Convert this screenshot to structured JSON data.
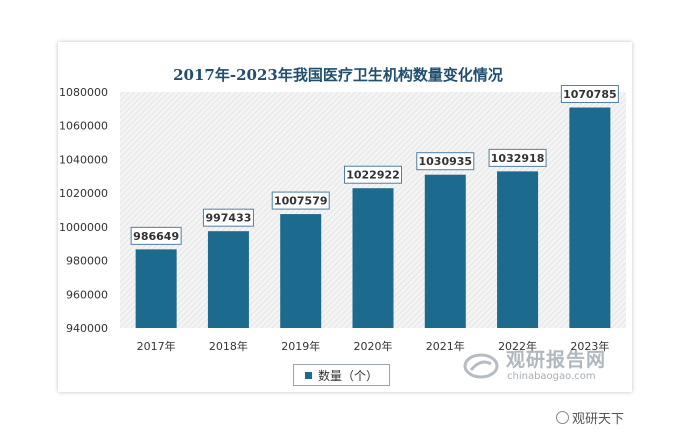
{
  "chart_data": {
    "type": "bar",
    "title": "2017年-2023年我国医疗卫生机构数量变化情况",
    "categories": [
      "2017年",
      "2018年",
      "2019年",
      "2020年",
      "2021年",
      "2022年",
      "2023年"
    ],
    "series": [
      {
        "name": "数量（个）",
        "values": [
          986649,
          997433,
          1007579,
          1022922,
          1030935,
          1032918,
          1070785
        ]
      }
    ],
    "ylim": [
      940000,
      1080000
    ],
    "yticks": [
      940000,
      960000,
      980000,
      1000000,
      1020000,
      1040000,
      1060000,
      1080000
    ],
    "ytick_labels": [
      "940000",
      "960000",
      "980000",
      "1000000",
      "1020000",
      "1040000",
      "1060000",
      "1080000"
    ],
    "legend": "bottom",
    "grid": false,
    "bar_color": "#1d6a8f"
  },
  "watermark": {
    "cn": "观研报告网",
    "en": "chinabaogao.com"
  },
  "footer": "观研天下"
}
